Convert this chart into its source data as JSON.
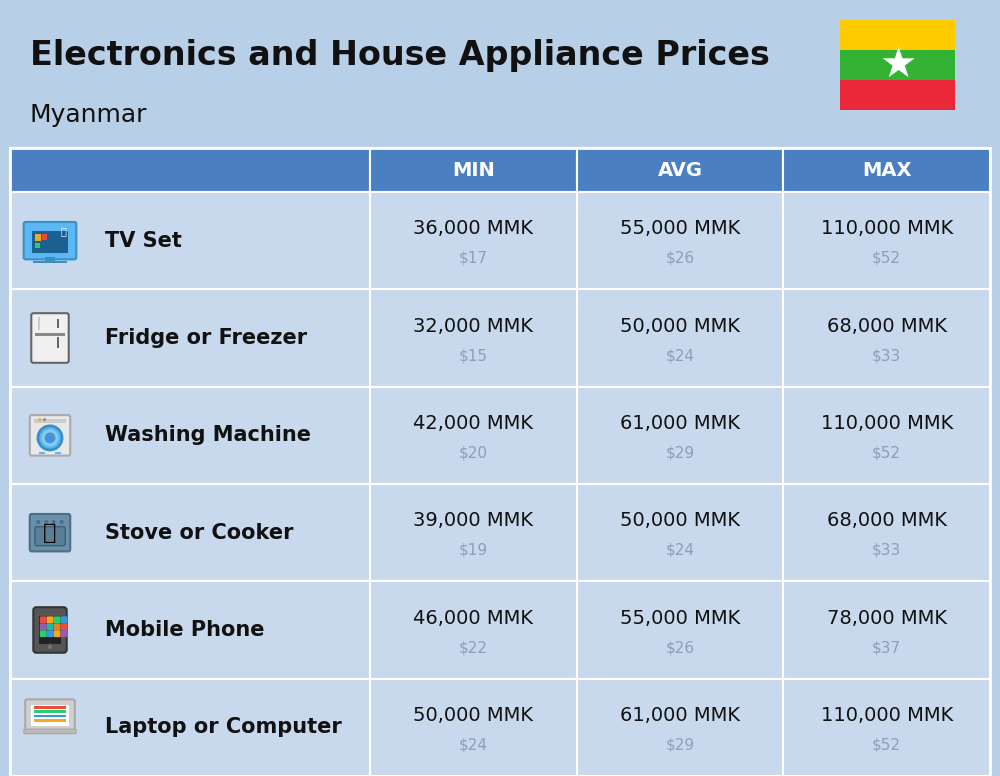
{
  "title": "Electronics and House Appliance Prices",
  "subtitle": "Myanmar",
  "background_color": "#b8cfe8",
  "header_color": "#4a7fc1",
  "header_text_color": "#ffffff",
  "row_bg": "#c8d9ed",
  "separator_color": "#ffffff",
  "columns": [
    "MIN",
    "AVG",
    "MAX"
  ],
  "rows": [
    {
      "label": "TV Set",
      "min_mmk": "36,000 MMK",
      "min_usd": "$17",
      "avg_mmk": "55,000 MMK",
      "avg_usd": "$26",
      "max_mmk": "110,000 MMK",
      "max_usd": "$52"
    },
    {
      "label": "Fridge or Freezer",
      "min_mmk": "32,000 MMK",
      "min_usd": "$15",
      "avg_mmk": "50,000 MMK",
      "avg_usd": "$24",
      "max_mmk": "68,000 MMK",
      "max_usd": "$33"
    },
    {
      "label": "Washing Machine",
      "min_mmk": "42,000 MMK",
      "min_usd": "$20",
      "avg_mmk": "61,000 MMK",
      "avg_usd": "$29",
      "max_mmk": "110,000 MMK",
      "max_usd": "$52"
    },
    {
      "label": "Stove or Cooker",
      "min_mmk": "39,000 MMK",
      "min_usd": "$19",
      "avg_mmk": "50,000 MMK",
      "avg_usd": "$24",
      "max_mmk": "68,000 MMK",
      "max_usd": "$33"
    },
    {
      "label": "Mobile Phone",
      "min_mmk": "46,000 MMK",
      "min_usd": "$22",
      "avg_mmk": "55,000 MMK",
      "avg_usd": "$26",
      "max_mmk": "78,000 MMK",
      "max_usd": "$37"
    },
    {
      "label": "Laptop or Computer",
      "min_mmk": "50,000 MMK",
      "min_usd": "$24",
      "avg_mmk": "61,000 MMK",
      "avg_usd": "$29",
      "max_mmk": "110,000 MMK",
      "max_usd": "$52"
    }
  ],
  "mmk_fontsize": 14,
  "usd_fontsize": 11,
  "label_fontsize": 15,
  "header_fontsize": 14,
  "title_fontsize": 24,
  "subtitle_fontsize": 18
}
